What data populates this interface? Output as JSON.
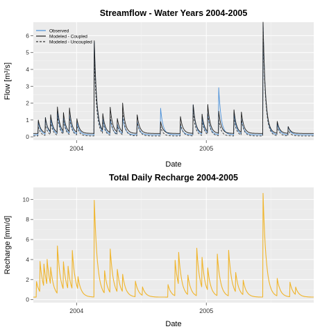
{
  "chart_data": [
    {
      "type": "line",
      "title": "Streamflow - Water Years 2004-2005",
      "xlabel": "Date",
      "ylabel": "Flow [m³/s]",
      "ylabel_parts": {
        "prefix": "Flow [m",
        "sup": "3",
        "suffix": "/s]"
      },
      "xlim": [
        "2003-09-01",
        "2005-10-31"
      ],
      "ylim": [
        -0.2,
        6.8
      ],
      "x_ticks": [
        {
          "date": "2004-01-01",
          "label": "2004"
        },
        {
          "date": "2005-01-01",
          "label": "2005"
        }
      ],
      "y_ticks": [
        0,
        1,
        2,
        3,
        4,
        5,
        6
      ],
      "grid": true,
      "legend": "top-left",
      "base_flows": {
        "Observed": 0.12,
        "Modeled - Coupled": 0.2,
        "Modeled - Uncoupled": 0.05
      },
      "series": [
        {
          "name": "Observed",
          "color": "#4a90d9",
          "dash": "none",
          "peaks": [
            [
              "2003-09-15",
              0.9
            ],
            [
              "2003-10-05",
              1.1
            ],
            [
              "2003-10-20",
              1.0
            ],
            [
              "2003-11-08",
              1.4
            ],
            [
              "2003-11-25",
              1.0
            ],
            [
              "2003-12-12",
              1.2
            ],
            [
              "2004-01-02",
              0.8
            ],
            [
              "2004-02-20",
              5.6
            ],
            [
              "2004-03-15",
              0.9
            ],
            [
              "2004-04-05",
              1.0
            ],
            [
              "2004-04-25",
              0.7
            ],
            [
              "2004-05-10",
              1.1
            ],
            [
              "2004-06-20",
              0.9
            ],
            [
              "2004-08-25",
              1.7
            ],
            [
              "2004-10-20",
              0.7
            ],
            [
              "2004-11-25",
              1.9
            ],
            [
              "2004-12-20",
              1.1
            ],
            [
              "2005-01-05",
              1.3
            ],
            [
              "2005-02-05",
              2.9
            ],
            [
              "2005-03-20",
              1.4
            ],
            [
              "2005-04-10",
              1.0
            ],
            [
              "2005-06-10",
              6.7
            ],
            [
              "2005-07-20",
              0.8
            ],
            [
              "2005-08-20",
              0.6
            ]
          ]
        },
        {
          "name": "Modeled - Coupled",
          "color": "#1a1a1a",
          "dash": "none",
          "peaks": [
            [
              "2003-09-15",
              1.0
            ],
            [
              "2003-10-05",
              1.1
            ],
            [
              "2003-10-20",
              1.2
            ],
            [
              "2003-11-08",
              1.7
            ],
            [
              "2003-11-25",
              1.3
            ],
            [
              "2003-12-12",
              1.6
            ],
            [
              "2004-01-02",
              1.0
            ],
            [
              "2004-02-20",
              5.7
            ],
            [
              "2004-03-15",
              1.2
            ],
            [
              "2004-04-05",
              1.7
            ],
            [
              "2004-04-25",
              1.0
            ],
            [
              "2004-05-10",
              1.9
            ],
            [
              "2004-06-20",
              1.3
            ],
            [
              "2004-08-25",
              0.9
            ],
            [
              "2004-10-20",
              1.2
            ],
            [
              "2004-11-25",
              1.9
            ],
            [
              "2004-12-20",
              1.3
            ],
            [
              "2005-01-05",
              1.8
            ],
            [
              "2005-02-05",
              1.5
            ],
            [
              "2005-03-20",
              1.6
            ],
            [
              "2005-04-10",
              1.4
            ],
            [
              "2005-06-10",
              6.8
            ],
            [
              "2005-07-20",
              0.9
            ],
            [
              "2005-08-20",
              0.6
            ]
          ]
        },
        {
          "name": "Modeled - Uncoupled",
          "color": "#333333",
          "dash": "3,2",
          "peaks": [
            [
              "2003-09-15",
              0.6
            ],
            [
              "2003-10-05",
              0.7
            ],
            [
              "2003-10-20",
              0.8
            ],
            [
              "2003-11-08",
              1.2
            ],
            [
              "2003-11-25",
              0.9
            ],
            [
              "2003-12-12",
              1.1
            ],
            [
              "2004-01-02",
              0.6
            ],
            [
              "2004-02-20",
              4.6
            ],
            [
              "2004-03-15",
              0.8
            ],
            [
              "2004-04-05",
              1.2
            ],
            [
              "2004-04-25",
              0.6
            ],
            [
              "2004-05-10",
              1.4
            ],
            [
              "2004-06-20",
              0.9
            ],
            [
              "2004-08-25",
              0.6
            ],
            [
              "2004-10-20",
              0.8
            ],
            [
              "2004-11-25",
              1.4
            ],
            [
              "2004-12-20",
              0.9
            ],
            [
              "2005-01-05",
              1.3
            ],
            [
              "2005-02-05",
              1.0
            ],
            [
              "2005-03-20",
              1.1
            ],
            [
              "2005-04-10",
              1.0
            ],
            [
              "2005-06-10",
              6.4
            ],
            [
              "2005-07-20",
              0.6
            ],
            [
              "2005-08-20",
              0.4
            ]
          ]
        }
      ]
    },
    {
      "type": "line",
      "title": "Total Daily Recharge 2004-2005",
      "xlabel": "Date",
      "ylabel": "Recharge [mm/d]",
      "xlim": [
        "2003-09-01",
        "2005-10-31"
      ],
      "ylim": [
        -0.3,
        11.2
      ],
      "x_ticks": [
        {
          "date": "2004-01-01",
          "label": "2004"
        },
        {
          "date": "2005-01-01",
          "label": "2005"
        }
      ],
      "y_ticks": [
        0,
        2,
        4,
        6,
        8,
        10
      ],
      "grid": true,
      "base_flow": 0.25,
      "series": [
        {
          "name": "",
          "color": "#f0b429",
          "dash": "none",
          "peaks": [
            [
              "2003-09-10",
              1.8
            ],
            [
              "2003-09-20",
              3.3
            ],
            [
              "2003-10-01",
              2.5
            ],
            [
              "2003-10-10",
              2.8
            ],
            [
              "2003-10-20",
              2.0
            ],
            [
              "2003-11-08",
              5.0
            ],
            [
              "2003-11-25",
              3.0
            ],
            [
              "2003-12-08",
              2.5
            ],
            [
              "2003-12-20",
              4.1
            ],
            [
              "2004-01-05",
              1.5
            ],
            [
              "2004-02-20",
              9.9
            ],
            [
              "2004-03-20",
              2.5
            ],
            [
              "2004-04-05",
              4.6
            ],
            [
              "2004-04-25",
              2.5
            ],
            [
              "2004-05-10",
              2.0
            ],
            [
              "2004-06-15",
              1.8
            ],
            [
              "2004-07-05",
              1.1
            ],
            [
              "2004-09-15",
              1.5
            ],
            [
              "2004-10-05",
              3.8
            ],
            [
              "2004-10-15",
              3.5
            ],
            [
              "2004-11-10",
              2.2
            ],
            [
              "2004-12-05",
              5.0
            ],
            [
              "2004-12-20",
              3.3
            ],
            [
              "2005-01-05",
              2.5
            ],
            [
              "2005-02-01",
              4.4
            ],
            [
              "2005-03-05",
              4.8
            ],
            [
              "2005-03-25",
              2.2
            ],
            [
              "2005-04-15",
              1.7
            ],
            [
              "2005-06-10",
              10.6
            ],
            [
              "2005-07-20",
              2.0
            ],
            [
              "2005-08-25",
              1.7
            ],
            [
              "2005-09-10",
              1.0
            ]
          ]
        }
      ]
    }
  ]
}
